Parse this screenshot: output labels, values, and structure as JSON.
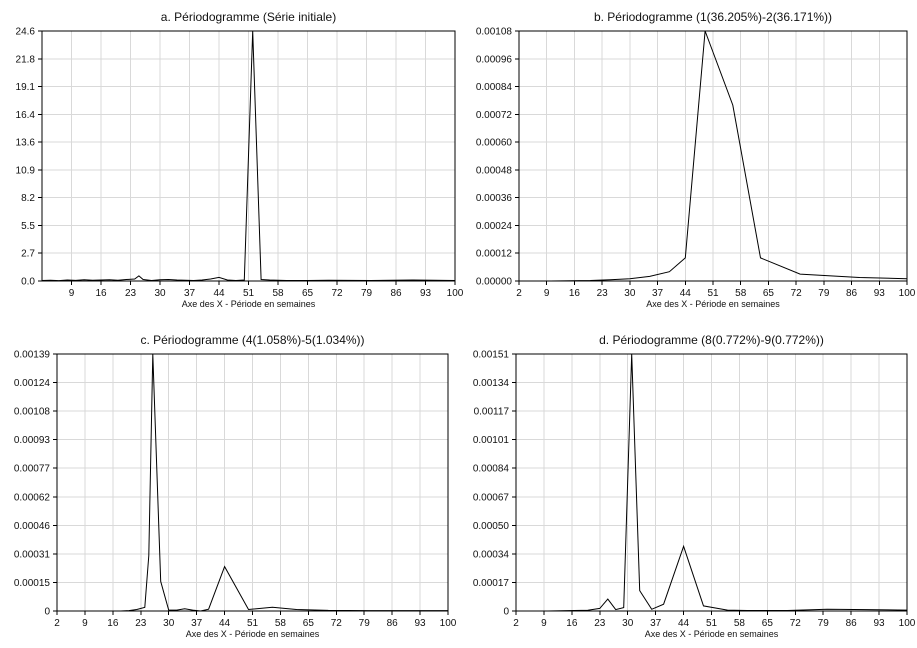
{
  "chart_data": [
    {
      "type": "line",
      "title": "a. Périodogramme (Série initiale)",
      "xlabel": "Axe des X - Période en semaines",
      "ylabel": "",
      "x_ticks": [
        "9",
        "16",
        "23",
        "30",
        "37",
        "44",
        "51",
        "58",
        "65",
        "72",
        "79",
        "86",
        "93",
        "100"
      ],
      "y_ticks": [
        "0.0",
        "2.7",
        "5.5",
        "8.2",
        "10.9",
        "13.6",
        "16.4",
        "19.1",
        "21.8",
        "24.6"
      ],
      "xlim": [
        2,
        100
      ],
      "ylim": [
        0,
        24.6
      ],
      "grid": true,
      "series": [
        {
          "x": [
            2,
            4,
            6,
            8,
            10,
            12,
            14,
            16,
            18,
            20,
            22,
            24,
            25,
            26,
            27,
            28,
            30,
            32,
            34,
            36,
            38,
            40,
            42,
            44,
            46,
            48,
            50,
            52,
            54,
            56,
            60,
            65,
            70,
            80,
            90,
            100
          ],
          "y": [
            0.05,
            0.08,
            0.04,
            0.1,
            0.06,
            0.12,
            0.08,
            0.1,
            0.12,
            0.08,
            0.15,
            0.2,
            0.5,
            0.15,
            0.1,
            0.05,
            0.12,
            0.15,
            0.1,
            0.08,
            0.05,
            0.1,
            0.2,
            0.35,
            0.1,
            0.05,
            0.1,
            24.6,
            0.15,
            0.1,
            0.05,
            0.05,
            0.08,
            0.05,
            0.1,
            0.05
          ]
        }
      ]
    },
    {
      "type": "line",
      "title": "b. Périodogramme (1(36.205%)-2(36.171%))",
      "xlabel": "Axe des X - Période en semaines",
      "ylabel": "",
      "x_ticks": [
        "2",
        "9",
        "16",
        "23",
        "30",
        "37",
        "44",
        "51",
        "58",
        "65",
        "72",
        "79",
        "86",
        "93",
        "100"
      ],
      "y_ticks": [
        "0.00000",
        "0.00012",
        "0.00024",
        "0.00036",
        "0.00048",
        "0.00060",
        "0.00072",
        "0.00084",
        "0.00096",
        "0.00108"
      ],
      "xlim": [
        2,
        100
      ],
      "ylim": [
        0,
        0.00108
      ],
      "grid": true,
      "series": [
        {
          "x": [
            2,
            10,
            20,
            25,
            30,
            35,
            40,
            44,
            49,
            56,
            63,
            73,
            88,
            100
          ],
          "y": [
            0.0,
            0.0,
            2e-06,
            5e-06,
            1e-05,
            2e-05,
            4e-05,
            0.0001,
            0.00108,
            0.00076,
            0.0001,
            3e-05,
            1.5e-05,
            1e-05
          ]
        }
      ]
    },
    {
      "type": "line",
      "title": "c. Périodogramme (4(1.058%)-5(1.034%))",
      "xlabel": "Axe des X - Période en semaines",
      "ylabel": "",
      "x_ticks": [
        "2",
        "9",
        "16",
        "23",
        "30",
        "37",
        "44",
        "51",
        "58",
        "65",
        "72",
        "79",
        "86",
        "93",
        "100"
      ],
      "y_ticks": [
        "0",
        "0.00015",
        "0.00031",
        "0.00046",
        "0.00062",
        "0.00077",
        "0.00093",
        "0.00108",
        "0.00124",
        "0.00139"
      ],
      "xlim": [
        2,
        100
      ],
      "ylim": [
        0,
        0.00139
      ],
      "grid": true,
      "series": [
        {
          "x": [
            2,
            10,
            18,
            20,
            22,
            24,
            25,
            26,
            28,
            30,
            32,
            34,
            36,
            38,
            40,
            44,
            50,
            56,
            62,
            70,
            80,
            90,
            100
          ],
          "y": [
            0.0,
            0.0,
            0.0,
            2e-06,
            8e-06,
            2e-05,
            0.0003,
            0.00139,
            0.00016,
            5e-06,
            5e-06,
            1.2e-05,
            5e-06,
            0.0,
            1e-05,
            0.00024,
            8e-06,
            2e-05,
            8e-06,
            3e-06,
            2e-06,
            2e-06,
            2e-06
          ]
        }
      ]
    },
    {
      "type": "line",
      "title": "d. Périodogramme (8(0.772%)-9(0.772%))",
      "xlabel": "Axe des X - Période en semaines",
      "ylabel": "",
      "x_ticks": [
        "2",
        "9",
        "16",
        "23",
        "30",
        "37",
        "44",
        "51",
        "58",
        "65",
        "72",
        "79",
        "86",
        "93",
        "100"
      ],
      "y_ticks": [
        "0",
        "0.00017",
        "0.00034",
        "0.00050",
        "0.00067",
        "0.00084",
        "0.00101",
        "0.00117",
        "0.00134",
        "0.00151"
      ],
      "xlim": [
        2,
        100
      ],
      "ylim": [
        0,
        0.00151
      ],
      "grid": true,
      "series": [
        {
          "x": [
            2,
            10,
            20,
            23,
            25,
            27,
            29,
            31,
            33,
            36,
            39,
            44,
            49,
            55,
            60,
            70,
            80,
            90,
            100
          ],
          "y": [
            0.0,
            0.0,
            4e-06,
            1.5e-05,
            7e-05,
            8e-06,
            2e-05,
            0.00151,
            0.00012,
            1e-05,
            4e-05,
            0.00038,
            3e-05,
            5e-06,
            3e-06,
            3e-06,
            1e-05,
            8e-06,
            5e-06
          ]
        }
      ]
    }
  ]
}
